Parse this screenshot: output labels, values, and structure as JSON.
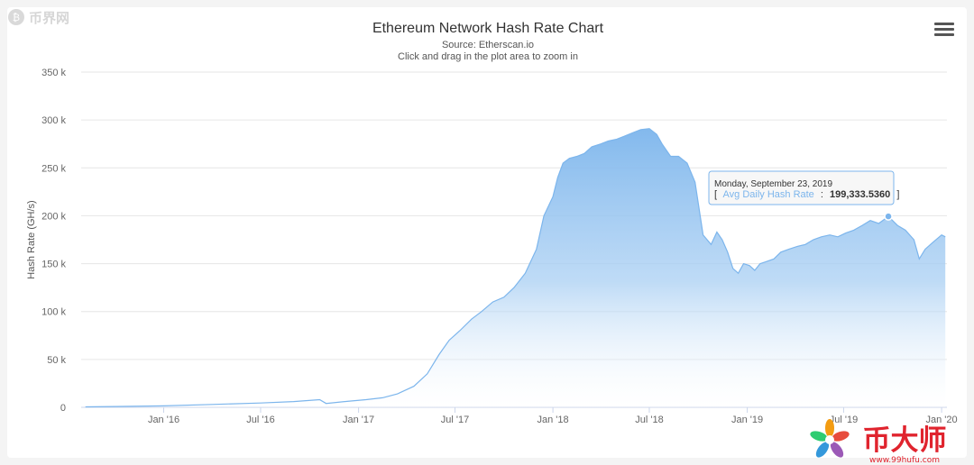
{
  "chart_data": {
    "type": "area",
    "title": "Ethereum Network Hash Rate Chart",
    "subtitle": "Source: Etherscan.io",
    "subtitle2": "Click and drag in the plot area to zoom in",
    "ylabel": "Hash Rate (GH/s)",
    "xlabel": "",
    "ylim": [
      0,
      350000
    ],
    "yticks": [
      0,
      50000,
      100000,
      150000,
      200000,
      250000,
      300000,
      350000
    ],
    "ytick_labels": [
      "0",
      "50 k",
      "100 k",
      "150 k",
      "200 k",
      "250 k",
      "300 k",
      "350 k"
    ],
    "xlim": [
      "2015-07-30",
      "2020-01-11"
    ],
    "xticks": [
      "2016-01-01",
      "2016-07-01",
      "2017-01-01",
      "2017-07-01",
      "2018-01-01",
      "2018-07-01",
      "2019-01-01",
      "2019-07-01",
      "2020-01-01"
    ],
    "xtick_labels": [
      "Jan '16",
      "Jul '16",
      "Jan '17",
      "Jul '17",
      "Jan '18",
      "Jul '18",
      "Jan '19",
      "Jul '19",
      "Jan '20"
    ],
    "grid": true,
    "legend": "none",
    "color": "#7cb5ec",
    "series": [
      {
        "x": [
          "2015-08-07",
          "2015-10-01",
          "2016-01-01",
          "2016-04-01",
          "2016-07-01",
          "2016-09-01",
          "2016-10-20",
          "2016-11-01",
          "2016-12-15",
          "2017-01-15",
          "2017-02-15",
          "2017-03-15",
          "2017-04-15",
          "2017-05-10",
          "2017-06-01",
          "2017-06-20",
          "2017-07-10",
          "2017-08-01",
          "2017-08-20",
          "2017-09-10",
          "2017-10-01",
          "2017-10-20",
          "2017-11-10",
          "2017-12-01",
          "2017-12-15",
          "2018-01-01",
          "2018-01-10",
          "2018-01-20",
          "2018-02-01",
          "2018-02-15",
          "2018-03-01",
          "2018-03-15",
          "2018-04-01",
          "2018-04-15",
          "2018-05-01",
          "2018-05-15",
          "2018-06-01",
          "2018-06-15",
          "2018-07-01",
          "2018-07-15",
          "2018-07-25",
          "2018-08-10",
          "2018-08-25",
          "2018-09-10",
          "2018-09-25",
          "2018-10-10",
          "2018-10-25",
          "2018-11-05",
          "2018-11-15",
          "2018-11-25",
          "2018-12-05",
          "2018-12-15",
          "2018-12-25",
          "2019-01-05",
          "2019-01-15",
          "2019-01-25",
          "2019-02-05",
          "2019-02-20",
          "2019-03-05",
          "2019-03-20",
          "2019-04-05",
          "2019-04-20",
          "2019-05-05",
          "2019-05-20",
          "2019-06-05",
          "2019-06-20",
          "2019-07-05",
          "2019-07-20",
          "2019-08-05",
          "2019-08-20",
          "2019-09-05",
          "2019-09-23",
          "2019-10-10",
          "2019-10-25",
          "2019-11-10",
          "2019-11-20",
          "2019-12-01",
          "2019-12-15",
          "2020-01-01",
          "2020-01-08"
        ],
        "y": [
          500,
          800,
          1500,
          3000,
          4500,
          6000,
          8000,
          4000,
          6500,
          8000,
          10000,
          14000,
          22000,
          35000,
          55000,
          70000,
          80000,
          92000,
          100000,
          110000,
          115000,
          125000,
          140000,
          165000,
          200000,
          220000,
          240000,
          255000,
          260000,
          262000,
          265000,
          272000,
          275000,
          278000,
          280000,
          283000,
          287000,
          290000,
          291000,
          285000,
          275000,
          262000,
          262000,
          255000,
          235000,
          180000,
          170000,
          183000,
          175000,
          162000,
          145000,
          140000,
          150000,
          148000,
          143000,
          150000,
          152000,
          155000,
          162000,
          165000,
          168000,
          170000,
          175000,
          178000,
          180000,
          178000,
          182000,
          185000,
          190000,
          195000,
          192000,
          199333.536,
          190000,
          185000,
          175000,
          155000,
          165000,
          172000,
          180000,
          178000
        ]
      }
    ],
    "tooltip": {
      "date": "Monday, September 23, 2019",
      "series_name": "Avg Daily Hash Rate",
      "value": "199,333.5360",
      "bracket_open": "[",
      "separator": ":",
      "bracket_close": "]"
    }
  },
  "watermarks": {
    "top_left": "币界网",
    "bottom_right_brand": "币大师",
    "bottom_right_url": "www.99hufu.com"
  },
  "colors": {
    "series": "#7cb5ec",
    "grid": "#e6e6e6",
    "axis_text": "#666666",
    "title": "#333333",
    "brand_red": "#e0242e"
  }
}
